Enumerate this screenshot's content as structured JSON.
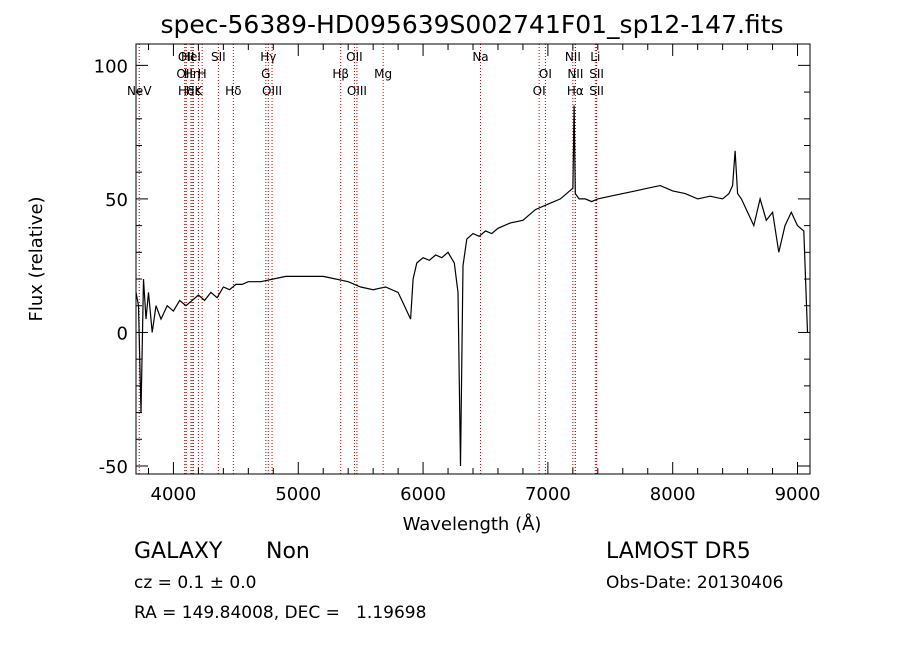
{
  "chart_data": {
    "type": "line",
    "title": "spec-56389-HD095639S002741F01_sp12-147.fits",
    "xlabel": "Wavelength (Å)",
    "ylabel": "Flux (relative)",
    "xlim": [
      3700,
      9100
    ],
    "ylim": [
      -53,
      108
    ],
    "x_ticks": [
      4000,
      5000,
      6000,
      7000,
      8000,
      9000
    ],
    "y_ticks": [
      -50,
      0,
      50,
      100
    ],
    "grid": false,
    "series": [
      {
        "color": "#000000",
        "x": [
          3700,
          3720,
          3740,
          3760,
          3780,
          3800,
          3830,
          3860,
          3900,
          3950,
          4000,
          4050,
          4100,
          4150,
          4200,
          4250,
          4300,
          4350,
          4400,
          4450,
          4500,
          4550,
          4600,
          4700,
          4800,
          4900,
          5000,
          5100,
          5200,
          5300,
          5400,
          5500,
          5600,
          5700,
          5800,
          5850,
          5900,
          5920,
          5950,
          6000,
          6050,
          6100,
          6150,
          6200,
          6250,
          6280,
          6300,
          6320,
          6350,
          6400,
          6450,
          6500,
          6550,
          6600,
          6700,
          6800,
          6900,
          7000,
          7100,
          7150,
          7200,
          7210,
          7220,
          7250,
          7300,
          7350,
          7400,
          7500,
          7600,
          7700,
          7800,
          7900,
          8000,
          8100,
          8200,
          8300,
          8400,
          8450,
          8480,
          8500,
          8520,
          8550,
          8600,
          8650,
          8700,
          8750,
          8800,
          8850,
          8900,
          8950,
          9000,
          9050,
          9080
        ],
        "y": [
          15,
          10,
          -30,
          20,
          5,
          15,
          0,
          10,
          5,
          10,
          8,
          12,
          10,
          12,
          14,
          12,
          15,
          13,
          17,
          16,
          18,
          18,
          19,
          19,
          20,
          21,
          21,
          21,
          21,
          20,
          19,
          17,
          16,
          17,
          15,
          10,
          5,
          20,
          26,
          28,
          27,
          29,
          28,
          30,
          26,
          15,
          -50,
          25,
          35,
          37,
          36,
          38,
          37,
          39,
          41,
          42,
          46,
          48,
          50,
          52,
          54,
          85,
          52,
          50,
          50,
          49,
          50,
          51,
          52,
          53,
          54,
          55,
          53,
          52,
          50,
          51,
          50,
          52,
          55,
          68,
          52,
          50,
          45,
          40,
          50,
          42,
          45,
          30,
          40,
          45,
          40,
          38,
          0
        ]
      }
    ],
    "lines": [
      {
        "label": "NeV",
        "x": 3726,
        "row": 3
      },
      {
        "label": "OII",
        "x": 4102,
        "row": 1
      },
      {
        "label": "OII",
        "x": 4090,
        "row": 2
      },
      {
        "label": "Hδ",
        "x": 4102,
        "row": 3
      },
      {
        "label": "HeI",
        "x": 4140,
        "row": 1
      },
      {
        "label": "Hη",
        "x": 4150,
        "row": 2
      },
      {
        "label": "Hε",
        "x": 4160,
        "row": 3
      },
      {
        "label": "H",
        "x": 4230,
        "row": 2
      },
      {
        "label": "K",
        "x": 4200,
        "row": 3
      },
      {
        "label": "SII",
        "x": 4360,
        "row": 1
      },
      {
        "label": "Hδ",
        "x": 4480,
        "row": 3
      },
      {
        "label": "Hγ",
        "x": 4760,
        "row": 1
      },
      {
        "label": "G",
        "x": 4740,
        "row": 2
      },
      {
        "label": "OIII",
        "x": 4790,
        "row": 3
      },
      {
        "label": "OII",
        "x": 5450,
        "row": 1
      },
      {
        "label": "Hβ",
        "x": 5340,
        "row": 2
      },
      {
        "label": "OIII",
        "x": 5470,
        "row": 3
      },
      {
        "label": "Mg",
        "x": 5680,
        "row": 2
      },
      {
        "label": "Na",
        "x": 6460,
        "row": 1
      },
      {
        "label": "OI",
        "x": 6980,
        "row": 2
      },
      {
        "label": "OI",
        "x": 6930,
        "row": 3
      },
      {
        "label": "NII",
        "x": 7200,
        "row": 1
      },
      {
        "label": "NII",
        "x": 7220,
        "row": 2
      },
      {
        "label": "Hα",
        "x": 7220,
        "row": 3
      },
      {
        "label": "Li",
        "x": 7380,
        "row": 1
      },
      {
        "label": "SII",
        "x": 7390,
        "row": 2
      },
      {
        "label": "SII",
        "x": 7390,
        "row": 3
      }
    ],
    "line_label_row_3_text": "",
    "extra_label": "Hε"
  },
  "footer": {
    "class_label": "GALAXY",
    "subclass": "Non",
    "survey": "LAMOST DR5",
    "cz": "cz = 0.1 ± 0.0",
    "obs_date": "Obs-Date: 20130406",
    "radec": "RA = 149.84008, DEC =   1.19698"
  }
}
